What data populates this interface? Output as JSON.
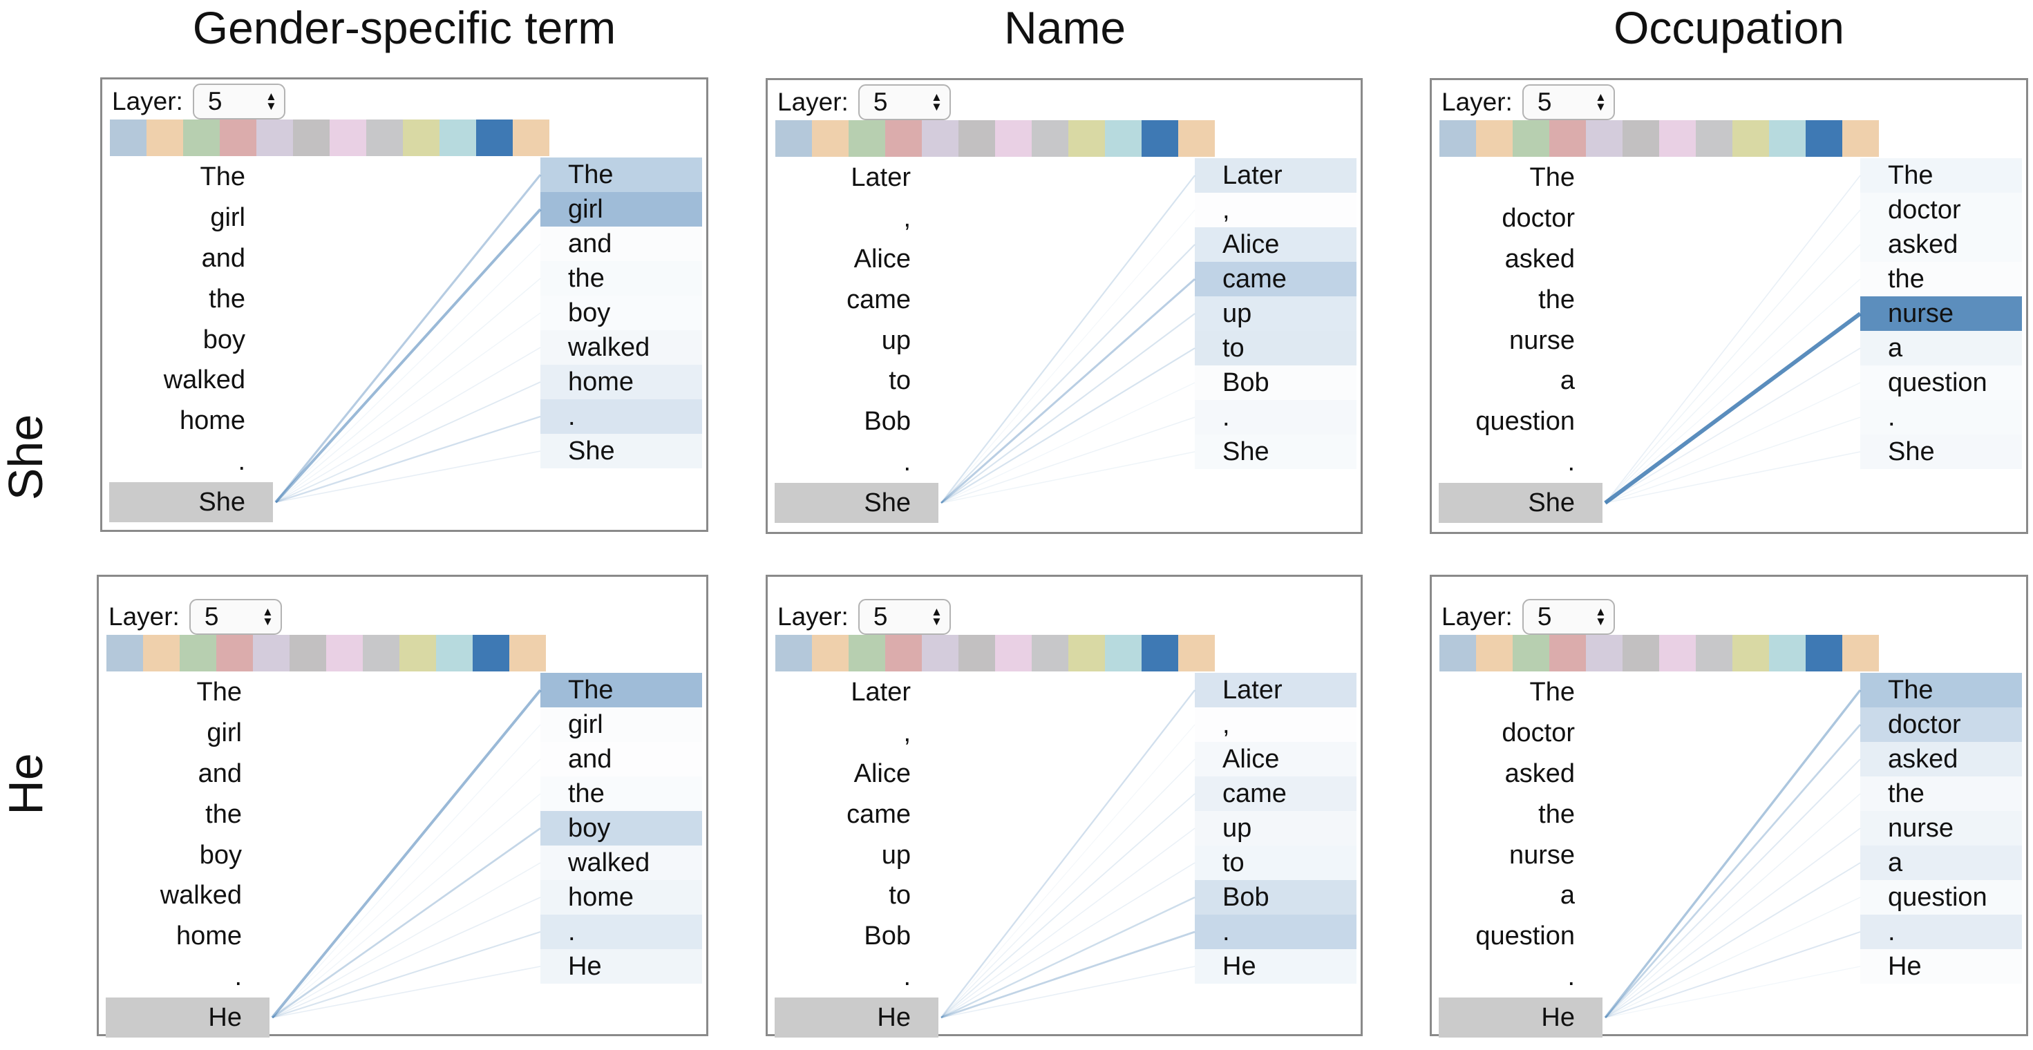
{
  "columns": [
    {
      "title": "Gender-specific term"
    },
    {
      "title": "Name"
    },
    {
      "title": "Occupation"
    }
  ],
  "row_labels": [
    {
      "label": "She"
    },
    {
      "label": "He"
    }
  ],
  "icons": {
    "stepper_up": "▲",
    "stepper_down": "▼"
  },
  "head_palette": {
    "colors": [
      "#b4c8da",
      "#efd0ac",
      "#b7cfb0",
      "#dbacac",
      "#d4ccdc",
      "#c2c0c1",
      "#e9d0e4",
      "#c7c7c9",
      "#d9d9a4",
      "#b7dade",
      "#3e79b4",
      "#efd0ac"
    ],
    "selected_index": 10
  },
  "colors": {
    "attention_base": "#3f7ab2",
    "attention_base_rgb": [
      63,
      122,
      178
    ],
    "selected_token_bg": "#cbcbcb",
    "panel_border": "#8a8a8a",
    "text": "#111111"
  },
  "panels": [
    {
      "id": "she-gender",
      "row_label": "She",
      "column_title": "Gender-specific term",
      "layer_label": "Layer:",
      "layer_value": "5",
      "tokens": [
        "The",
        "girl",
        "and",
        "the",
        "boy",
        "walked",
        "home",
        ".",
        "She"
      ],
      "selected_token": "She",
      "selected_index": 8,
      "attention": [
        0.35,
        0.5,
        0.02,
        0.04,
        0.03,
        0.06,
        0.12,
        0.2,
        0.08
      ]
    },
    {
      "id": "she-name",
      "row_label": "She",
      "column_title": "Name",
      "layer_label": "Layer:",
      "layer_value": "5",
      "tokens": [
        "Later",
        ",",
        "Alice",
        "came",
        "up",
        "to",
        "Bob",
        ".",
        "She"
      ],
      "selected_token": "She",
      "selected_index": 8,
      "attention": [
        0.17,
        0.01,
        0.16,
        0.33,
        0.16,
        0.17,
        0.02,
        0.05,
        0.04
      ]
    },
    {
      "id": "she-occupation",
      "row_label": "She",
      "column_title": "Occupation",
      "layer_label": "Layer:",
      "layer_value": "5",
      "tokens": [
        "The",
        "doctor",
        "asked",
        "the",
        "nurse",
        "a",
        "question",
        ".",
        "She"
      ],
      "selected_token": "She",
      "selected_index": 8,
      "attention": [
        0.07,
        0.04,
        0.04,
        0.02,
        0.85,
        0.08,
        0.03,
        0.04,
        0.05
      ]
    },
    {
      "id": "he-gender",
      "row_label": "He",
      "column_title": "Gender-specific term",
      "layer_label": "Layer:",
      "layer_value": "5",
      "tokens": [
        "The",
        "girl",
        "and",
        "the",
        "boy",
        "walked",
        "home",
        ".",
        "He"
      ],
      "selected_token": "He",
      "selected_index": 8,
      "attention": [
        0.5,
        0.02,
        0.01,
        0.03,
        0.27,
        0.05,
        0.08,
        0.16,
        0.08
      ]
    },
    {
      "id": "he-name",
      "row_label": "He",
      "column_title": "Name",
      "layer_label": "Layer:",
      "layer_value": "5",
      "tokens": [
        "Later",
        ",",
        "Alice",
        "came",
        "up",
        "to",
        "Bob",
        ".",
        "He"
      ],
      "selected_token": "He",
      "selected_index": 8,
      "attention": [
        0.2,
        0.01,
        0.05,
        0.1,
        0.06,
        0.07,
        0.22,
        0.29,
        0.07
      ]
    },
    {
      "id": "he-occupation",
      "row_label": "He",
      "column_title": "Occupation",
      "layer_label": "Layer:",
      "layer_value": "5",
      "tokens": [
        "The",
        "doctor",
        "asked",
        "the",
        "nurse",
        "a",
        "question",
        ".",
        "He"
      ],
      "selected_token": "He",
      "selected_index": 8,
      "attention": [
        0.4,
        0.28,
        0.13,
        0.05,
        0.08,
        0.12,
        0.04,
        0.14,
        0.02
      ]
    }
  ]
}
